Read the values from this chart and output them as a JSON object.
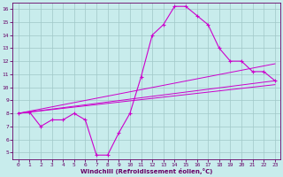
{
  "xlabel": "Windchill (Refroidissement éolien,°C)",
  "ylabel": "",
  "bg_color": "#c8ecec",
  "grid_color": "#a0c8c8",
  "line_color": "#cc00cc",
  "xlim": [
    -0.5,
    23.5
  ],
  "ylim": [
    4.5,
    16.5
  ],
  "xticks": [
    0,
    1,
    2,
    3,
    4,
    5,
    6,
    7,
    8,
    9,
    10,
    11,
    12,
    13,
    14,
    15,
    16,
    17,
    18,
    19,
    20,
    21,
    22,
    23
  ],
  "yticks": [
    5,
    6,
    7,
    8,
    9,
    10,
    11,
    12,
    13,
    14,
    15,
    16
  ],
  "line1_x": [
    0,
    1,
    2,
    3,
    4,
    5,
    6,
    7,
    8,
    9,
    10,
    11,
    12,
    13,
    14,
    15,
    16,
    17,
    18,
    19,
    20,
    21,
    22,
    23
  ],
  "line1_y": [
    8.0,
    8.1,
    7.0,
    7.5,
    7.5,
    8.0,
    7.5,
    4.8,
    4.8,
    6.5,
    8.0,
    10.8,
    14.0,
    14.8,
    16.2,
    16.2,
    15.5,
    14.8,
    13.0,
    12.0,
    12.0,
    11.2,
    11.2,
    10.5
  ],
  "line2_x": [
    0,
    23
  ],
  "line2_y": [
    8.0,
    10.5
  ],
  "line3_x": [
    0,
    23
  ],
  "line3_y": [
    8.0,
    11.8
  ],
  "line4_x": [
    0,
    23
  ],
  "line4_y": [
    8.0,
    10.2
  ]
}
